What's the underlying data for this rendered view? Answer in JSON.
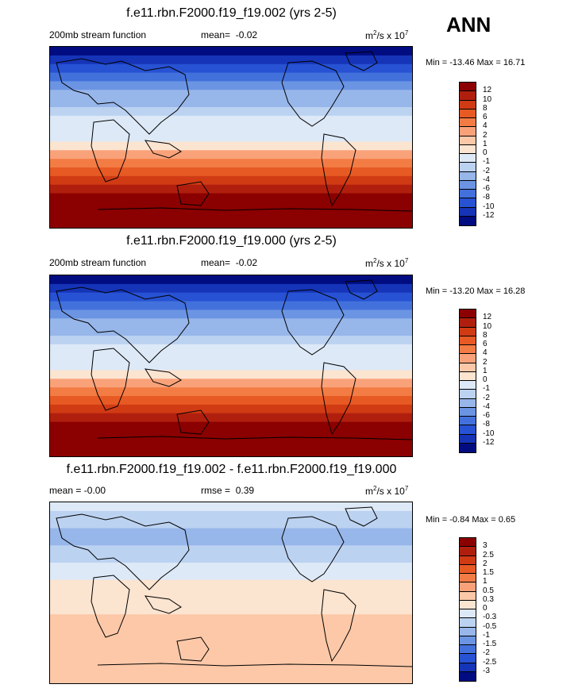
{
  "season": "ANN",
  "chart_data": [
    {
      "type": "heatmap",
      "title": "f.e11.rbn.F2000.f19_f19.002 (yrs 2-5)",
      "field_label": "200mb stream function",
      "stat_label": "mean=",
      "stat_value": "-0.02",
      "units_prefix": "m",
      "units_sup1": "2",
      "units_mid": "/s x 10",
      "units_sup2": "7",
      "min_label": "Min = -13.46 Max =  16.71",
      "min": -13.46,
      "max": 16.71,
      "levels": [
        "12",
        "10",
        "8",
        "6",
        "4",
        "2",
        "1",
        "0",
        "-1",
        "-2",
        "-4",
        "-6",
        "-8",
        "-10",
        "-12"
      ],
      "colors": [
        "#8b0000",
        "#b01f0e",
        "#d03b14",
        "#e85a24",
        "#f37c45",
        "#f9a27a",
        "#fcc8a8",
        "#fbe4d0",
        "#dde9f7",
        "#bcd2f1",
        "#97b6ea",
        "#6b94e3",
        "#4371dc",
        "#2752d3",
        "#1534b8",
        "#000c80"
      ],
      "lat_profile": [
        -12.5,
        -11,
        -9,
        -7,
        -5.5,
        -4,
        -2.5,
        -1.5,
        -0.8,
        -0.5,
        -0.2,
        0.5,
        2,
        4,
        6,
        8,
        10,
        12,
        13.5,
        14.5,
        15
      ]
    },
    {
      "type": "heatmap",
      "title": "f.e11.rbn.F2000.f19_f19.000 (yrs 2-5)",
      "field_label": "200mb stream function",
      "stat_label": "mean=",
      "stat_value": "-0.02",
      "units_prefix": "m",
      "units_sup1": "2",
      "units_mid": "/s x 10",
      "units_sup2": "7",
      "min_label": "Min = -13.20 Max =  16.28",
      "min": -13.2,
      "max": 16.28,
      "levels": [
        "12",
        "10",
        "8",
        "6",
        "4",
        "2",
        "1",
        "0",
        "-1",
        "-2",
        "-4",
        "-6",
        "-8",
        "-10",
        "-12"
      ],
      "colors": [
        "#8b0000",
        "#b01f0e",
        "#d03b14",
        "#e85a24",
        "#f37c45",
        "#f9a27a",
        "#fcc8a8",
        "#fbe4d0",
        "#dde9f7",
        "#bcd2f1",
        "#97b6ea",
        "#6b94e3",
        "#4371dc",
        "#2752d3",
        "#1534b8",
        "#000c80"
      ],
      "lat_profile": [
        -12.5,
        -11,
        -9,
        -7,
        -5.5,
        -4,
        -2.5,
        -1.5,
        -0.8,
        -0.5,
        -0.2,
        0.5,
        2,
        4,
        6,
        8,
        10,
        12,
        13.5,
        14.5,
        15
      ]
    },
    {
      "type": "heatmap",
      "title": "f.e11.rbn.F2000.f19_f19.002 - f.e11.rbn.F2000.f19_f19.000",
      "field_label": "mean =  -0.00",
      "stat_label": "rmse =",
      "stat_value": "0.39",
      "units_prefix": "m",
      "units_sup1": "2",
      "units_mid": "/s x 10",
      "units_sup2": "7",
      "min_label": "Min =  -0.84 Max =   0.65",
      "min": -0.84,
      "max": 0.65,
      "levels": [
        "3",
        "2.5",
        "2",
        "1.5",
        "1",
        "0.5",
        "0.3",
        "0",
        "-0.3",
        "-0.5",
        "-1",
        "-1.5",
        "-2",
        "-2.5",
        "-3"
      ],
      "colors": [
        "#8b0000",
        "#b01f0e",
        "#d03b14",
        "#e85a24",
        "#f37c45",
        "#f9a27a",
        "#fcc8a8",
        "#fbe4d0",
        "#dde9f7",
        "#bcd2f1",
        "#97b6ea",
        "#6b94e3",
        "#4371dc",
        "#2752d3",
        "#1534b8",
        "#000c80"
      ],
      "lat_profile": [
        -0.2,
        -0.35,
        -0.45,
        -0.55,
        -0.6,
        -0.5,
        -0.4,
        -0.3,
        -0.1,
        0.05,
        0.15,
        0.2,
        0.25,
        0.3,
        0.35,
        0.4,
        0.45,
        0.45,
        0.4,
        0.35,
        0.3
      ]
    }
  ]
}
